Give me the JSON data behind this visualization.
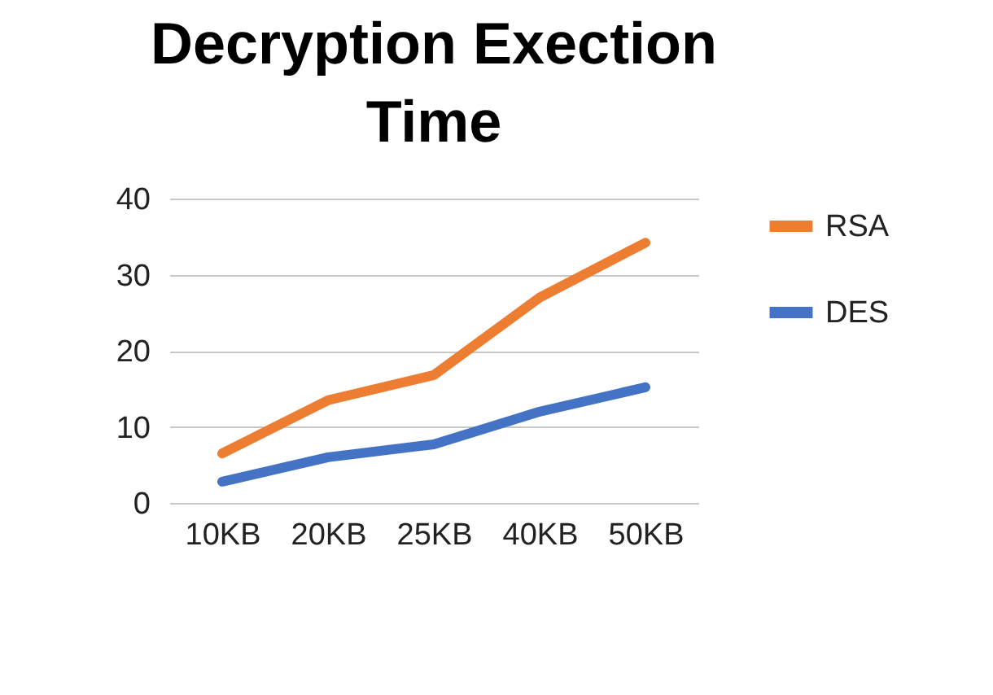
{
  "chart_data": {
    "type": "line",
    "title": "Decryption Exection Time",
    "categories": [
      "10KB",
      "20KB",
      "25KB",
      "40KB",
      "50KB"
    ],
    "series": [
      {
        "name": "RSA",
        "color": "#ed7d31",
        "values": [
          6.5,
          13.5,
          16.8,
          27,
          34.2
        ]
      },
      {
        "name": "DES",
        "color": "#4472c4",
        "values": [
          2.8,
          6,
          7.7,
          12,
          15.2
        ]
      }
    ],
    "ylim": [
      0,
      40
    ],
    "yticks": [
      0,
      10,
      20,
      30,
      40
    ],
    "grid": "y",
    "legend": "right",
    "marker": "none",
    "line_style": "solid"
  }
}
